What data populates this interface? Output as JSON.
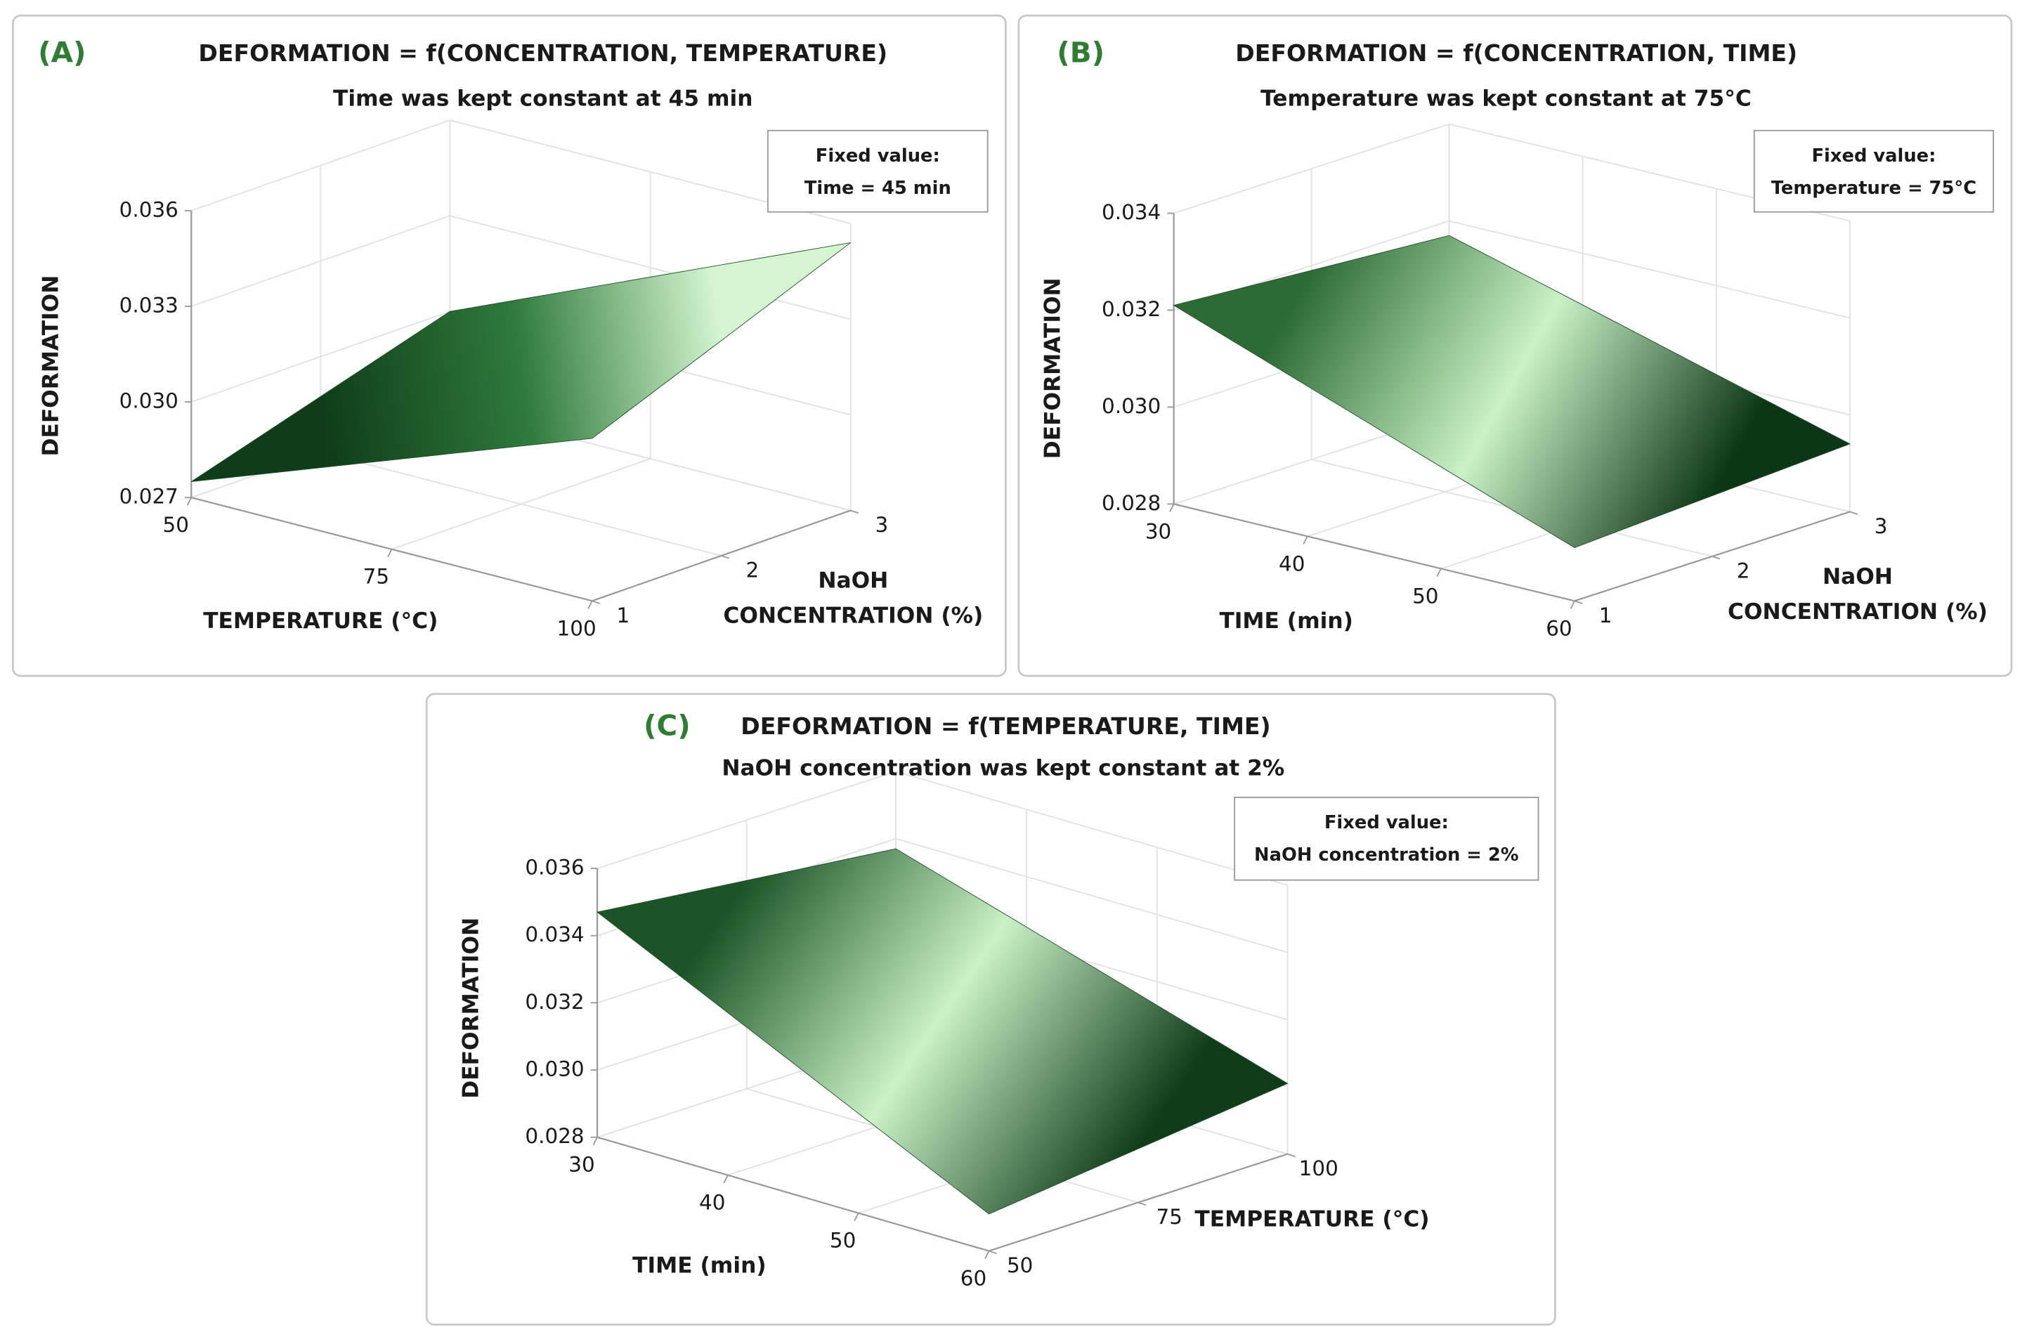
{
  "chart_data": [
    {
      "type": "surface",
      "panel_label": "(A)",
      "title": "DEFORMATION = f(CONCENTRATION, TEMPERATURE)",
      "subtitle": "Time was kept constant at 45 min",
      "fixed_value": [
        "Fixed value:",
        "Time = 45 min"
      ],
      "xlabel": "TEMPERATURE (°C)",
      "ylabel": [
        "NaOH",
        "CONCENTRATION (%)"
      ],
      "zlabel": "DEFORMATION",
      "x": [
        50,
        100
      ],
      "y": [
        1,
        3
      ],
      "z": [
        [
          0.0275,
          0.0321
        ],
        [
          0.03,
          0.0354
        ]
      ],
      "xlim": [
        50,
        100
      ],
      "xticks": [
        50,
        75,
        100
      ],
      "ylim": [
        1,
        3
      ],
      "yticks": [
        1,
        2,
        3
      ],
      "zlim": [
        0.027,
        0.036
      ],
      "zticks": [
        0.027,
        {
          "value": 0.03,
          "label": "0.030"
        },
        0.033,
        0.036
      ],
      "colors": [
        "#0f3d19",
        "#2f7a3c",
        "#d4f5d0"
      ],
      "grid": true
    },
    {
      "type": "surface",
      "panel_label": "(B)",
      "title": "DEFORMATION = f(CONCENTRATION, TIME)",
      "subtitle": "Temperature was kept constant at 75°C",
      "fixed_value": [
        "Fixed value:",
        "Temperature = 75°C"
      ],
      "xlabel": "TIME (min)",
      "ylabel": [
        "NaOH",
        "CONCENTRATION (%)"
      ],
      "zlabel": "DEFORMATION",
      "x": [
        30,
        60
      ],
      "y": [
        1,
        3
      ],
      "z": [
        [
          0.0321,
          0.0291
        ],
        [
          0.0317,
          0.0294
        ]
      ],
      "xlim": [
        30,
        60
      ],
      "xticks": [
        30,
        40,
        50,
        60
      ],
      "ylim": [
        1,
        3
      ],
      "yticks": [
        1,
        2,
        3
      ],
      "zlim": [
        0.028,
        0.034
      ],
      "zticks": [
        0.028,
        {
          "value": 0.03,
          "label": "0.030"
        },
        0.032,
        0.034
      ],
      "colors": [
        "#2c6b35",
        "#c9f2c6",
        "#0c3716"
      ],
      "grid": true
    },
    {
      "type": "surface",
      "panel_label": "(C)",
      "title": "DEFORMATION = f(TEMPERATURE, TIME)",
      "subtitle": "NaOH concentration was kept constant at 2%",
      "fixed_value": [
        "Fixed value:",
        "NaOH concentration = 2%"
      ],
      "xlabel": "TIME (min)",
      "ylabel": [
        "TEMPERATURE (°C)"
      ],
      "zlabel": "DEFORMATION",
      "x": [
        30,
        60
      ],
      "y": [
        50,
        100
      ],
      "z": [
        [
          0.0347,
          0.0291
        ],
        [
          0.0337,
          0.0301
        ]
      ],
      "xlim": [
        30,
        60
      ],
      "xticks": [
        30,
        40,
        50,
        60
      ],
      "ylim": [
        50,
        100
      ],
      "yticks": [
        50,
        75,
        100
      ],
      "zlim": [
        0.028,
        0.036
      ],
      "zticks": [
        0.028,
        {
          "value": 0.03,
          "label": "0.030"
        },
        0.032,
        0.034,
        0.036
      ],
      "colors": [
        "#1b5426",
        "#c9f2c6",
        "#0f3d19"
      ],
      "grid": true
    }
  ]
}
